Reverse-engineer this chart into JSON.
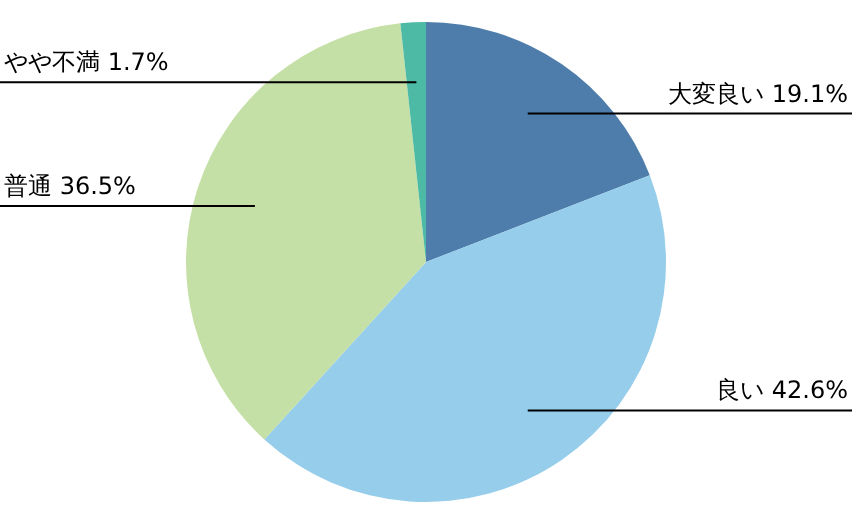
{
  "chart_data": {
    "type": "pie",
    "categories": [
      "大変良い",
      "良い",
      "普通",
      "やや不満"
    ],
    "values": [
      19.1,
      42.6,
      36.5,
      1.7
    ],
    "colors": [
      "#4e7dab",
      "#95cdea",
      "#c5e0a6",
      "#4dbaa6"
    ],
    "value_labels": [
      "19.1%",
      "42.6%",
      "36.5%",
      "1.7%"
    ]
  }
}
